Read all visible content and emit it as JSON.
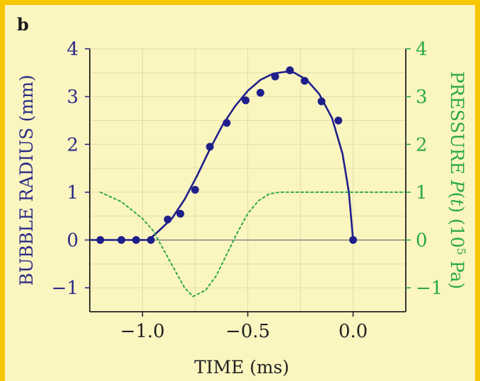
{
  "panel_label": "b",
  "colors": {
    "background": "#f7c600",
    "plot_bg": "#fbf5c0",
    "radius": "#1f1f8a",
    "pressure": "#2aa84a"
  },
  "chart_data": {
    "type": "line",
    "xlabel": "TIME (ms)",
    "ylabel_left": "BUBBLE RADIUS (mm)",
    "ylabel_right": {
      "prefix": "PRESSURE ",
      "italic": "P",
      "mid": "(",
      "italic2": "t",
      "close": ") (10",
      "sup": "5",
      "unit": " Pa)"
    },
    "xlim": [
      -1.25,
      0.25
    ],
    "ylim_left": [
      -1.5,
      4
    ],
    "ylim_right": [
      -1.5,
      4
    ],
    "xticks": [
      -1.0,
      -0.5,
      0.0
    ],
    "xtick_labels": [
      "−1.0",
      "−0.5",
      "0.0"
    ],
    "yticks": [
      -1,
      0,
      1,
      2,
      3,
      4
    ],
    "ytick_labels": [
      "−1",
      "0",
      "1",
      "2",
      "3",
      "4"
    ],
    "grid": true,
    "series": [
      {
        "kind": "scatter",
        "axis": "left",
        "x": [
          -1.2,
          -1.1,
          -1.03,
          -0.96,
          -0.88,
          -0.82,
          -0.75,
          -0.68,
          -0.6,
          -0.51,
          -0.44,
          -0.37,
          -0.3,
          -0.23,
          -0.15,
          -0.07,
          0.0
        ],
        "y": [
          0,
          0,
          0,
          0,
          0.43,
          0.55,
          1.05,
          1.95,
          2.45,
          2.92,
          3.08,
          3.42,
          3.55,
          3.33,
          2.9,
          2.5,
          0
        ]
      },
      {
        "kind": "line",
        "axis": "left",
        "style": "solid",
        "x": [
          -1.25,
          -0.97,
          -0.92,
          -0.86,
          -0.8,
          -0.74,
          -0.68,
          -0.62,
          -0.56,
          -0.5,
          -0.44,
          -0.38,
          -0.32,
          -0.28,
          -0.22,
          -0.16,
          -0.1,
          -0.05,
          -0.02,
          0.0
        ],
        "y": [
          0,
          0,
          0.2,
          0.45,
          0.85,
          1.35,
          1.9,
          2.4,
          2.8,
          3.12,
          3.35,
          3.48,
          3.52,
          3.5,
          3.35,
          3.05,
          2.55,
          1.8,
          1.0,
          0
        ]
      },
      {
        "kind": "line",
        "axis": "right",
        "style": "dotted",
        "x": [
          -1.2,
          -1.1,
          -1.0,
          -0.95,
          -0.9,
          -0.85,
          -0.8,
          -0.76,
          -0.7,
          -0.65,
          -0.6,
          -0.55,
          -0.5,
          -0.45,
          -0.4,
          -0.35,
          -0.3,
          -0.2,
          -0.1,
          0.0,
          0.1,
          0.2,
          0.25
        ],
        "y": [
          1.0,
          0.8,
          0.45,
          0.2,
          -0.2,
          -0.6,
          -1.0,
          -1.18,
          -1.05,
          -0.75,
          -0.3,
          0.15,
          0.55,
          0.82,
          0.96,
          1.0,
          1.0,
          1.0,
          1.0,
          1.0,
          1.0,
          1.0,
          1.0
        ]
      }
    ]
  }
}
